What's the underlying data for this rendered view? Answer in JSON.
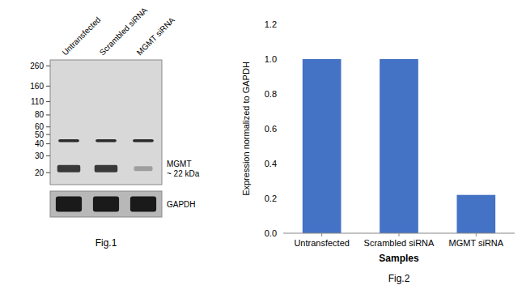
{
  "chart_data": [
    {
      "type": "blot",
      "title": "Fig.1",
      "categories": [
        "Untransfected",
        "Scrambled siRNA",
        "MGMT siRNA"
      ],
      "log": "y",
      "ylim": [
        15,
        300
      ],
      "yticks": [
        260,
        160,
        110,
        80,
        60,
        50,
        40,
        30,
        20
      ],
      "series": [
        {
          "name": "MGMT\n~ 22 kDa",
          "values": [
            22,
            22,
            22
          ],
          "intensity": [
            0.85,
            0.85,
            0.25
          ]
        },
        {
          "values": [
            43,
            43,
            43
          ]
        }
      ],
      "annotations": [
        "GAPDH"
      ]
    },
    {
      "type": "bar",
      "title": "Fig.2",
      "categories": [
        "Untransfected",
        "Scrambled siRNA",
        "MGMT siRNA"
      ],
      "values": [
        1.0,
        1.0,
        0.22
      ],
      "color": "#4472C4",
      "xlabel": "Samples",
      "ylabel": "Expression normalized to GAPDH",
      "ylim": [
        0,
        1.2
      ],
      "yticks": [
        {
          "value": 0,
          "label": "0.0"
        },
        0.2,
        0.4,
        0.6,
        0.8,
        {
          "value": 1.0,
          "label": "1.0"
        },
        1.2
      ]
    }
  ]
}
